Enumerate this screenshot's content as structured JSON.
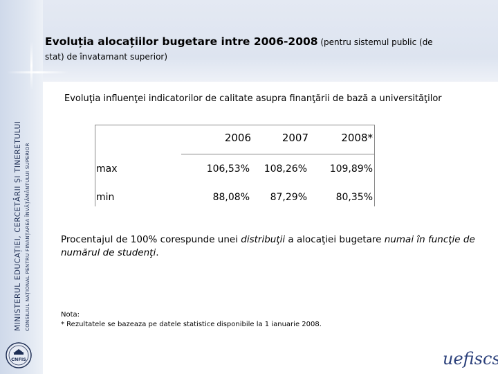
{
  "header": {
    "title_bold": "Evoluția alocațiilor bugetare intre 2006-2008",
    "title_normal": " (pentru sistemul public (de",
    "title_line2": "stat) de învatamant superior)"
  },
  "side": {
    "ministry": "MINISTERUL EDUCAȚIEI, CERCETĂRII ȘI TINERETULUI",
    "council": "CONSILIUL NAȚIONAL PENTRU FINANȚAREA ÎNVĂȚĂMÂNTULUI SUPERIOR"
  },
  "subtitle": "Evoluţia influenţei indicatorilor de calitate  asupra finanţării de bază a universităţilor",
  "table": {
    "columns": [
      "2006",
      "2007",
      "2008*"
    ],
    "rows": [
      {
        "label": "max",
        "values": [
          "106,53%",
          "108,26%",
          "109,89%"
        ]
      },
      {
        "label": "min",
        "values": [
          "88,08%",
          "87,29%",
          "80,35%"
        ]
      }
    ]
  },
  "note": {
    "part1": "Procentajul de 100% corespunde unei ",
    "part2": "distribuţii",
    "part3": "  a alocaţiei bugetare ",
    "part4": "numai în funcţie de numărul de studenţi",
    "part5": "."
  },
  "footnote": {
    "label": "Nota:",
    "text": "* Rezultatele se bazeaza pe datele statistice disponibile la 1 ianuarie 2008."
  },
  "logos": {
    "left_text": "CNFIS",
    "right_text": "uefiscsu"
  },
  "colors": {
    "band": "#dde4f0",
    "accent": "#1f2f55"
  }
}
